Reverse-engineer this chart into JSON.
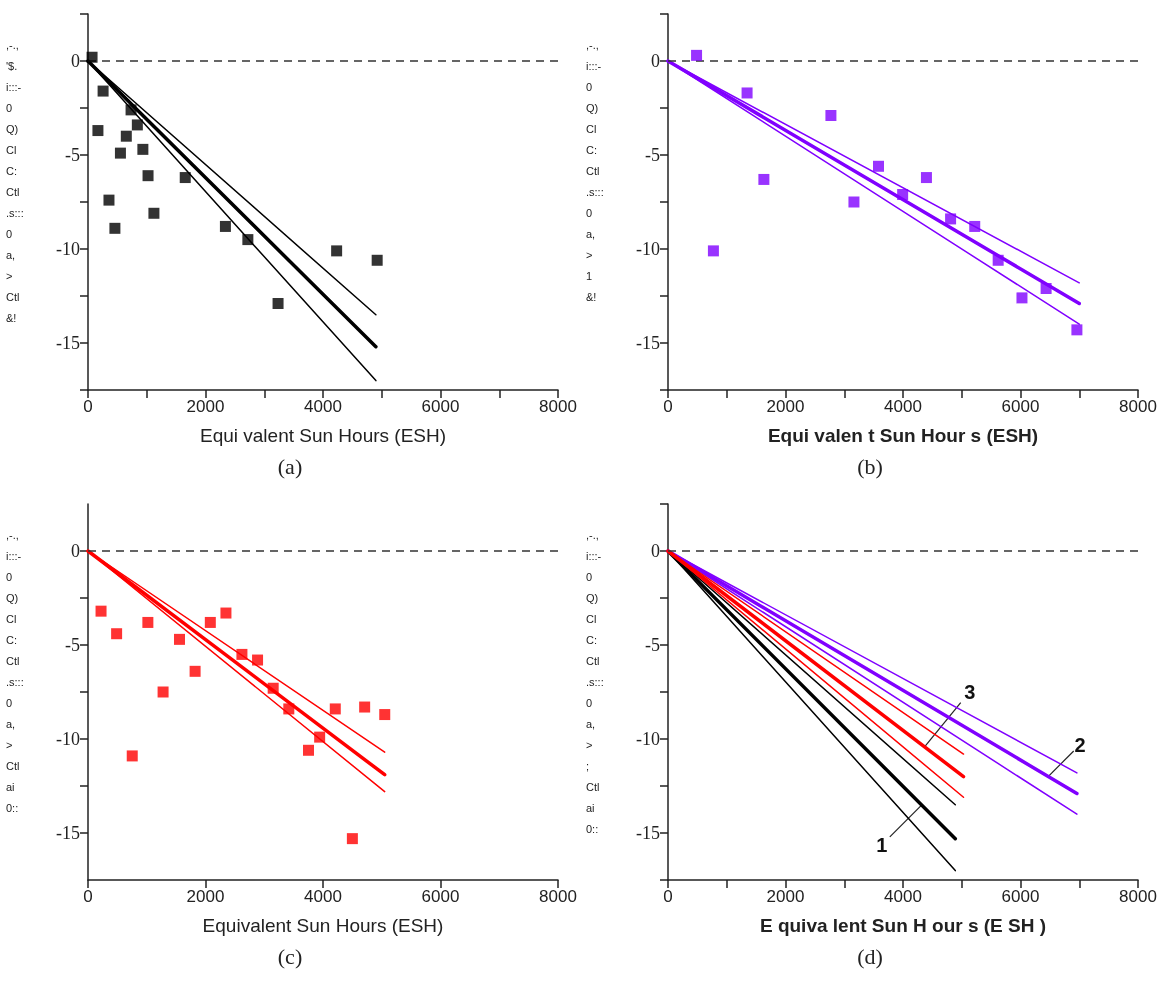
{
  "chart_data": [
    {
      "type": "scatter",
      "title": "(a)",
      "xlabel": "Equi valent Sun Hours (ESH)",
      "ylabel": ",-.,\n'$.\ni:::-\n0\nQ)\nCl\nC:\nCtl\n.s:::\n0\na,\n>\nCtl\n&!",
      "xlim": [
        0,
        8000
      ],
      "xticks": [
        0,
        {
          "value": 1000,
          "label": null
        },
        2000,
        {
          "value": 3000,
          "label": null
        },
        4000,
        {
          "value": 5000,
          "label": null
        },
        6000,
        {
          "value": 7000,
          "label": null
        },
        8000
      ],
      "ylim": [
        -17.5,
        2.5
      ],
      "yticks": [
        {
          "value": 2.5,
          "label": null
        },
        0,
        {
          "value": -2.5,
          "label": null
        },
        -5,
        {
          "value": -7.5,
          "label": null
        },
        -10,
        {
          "value": -12.5,
          "label": null
        },
        -15,
        {
          "value": -17.5,
          "label": null
        }
      ],
      "grid": false,
      "ref_lines": [
        {
          "axis": "y",
          "value": 0,
          "color": "#333333",
          "line_style": "dashed"
        }
      ],
      "series": [
        {
          "color": "#000000",
          "marker": "square",
          "x": [
            69,
            257,
            169,
            733,
            840,
            652,
            552,
            934,
            1022,
            357,
            1122,
            458,
            1655,
            2339,
            2721,
            3235,
            4232,
            4922
          ],
          "values": [
            0.2,
            -1.6,
            -3.7,
            -2.6,
            -3.4,
            -4.0,
            -4.9,
            -4.7,
            -6.1,
            -7.4,
            -8.1,
            -8.9,
            -6.2,
            -8.8,
            -9.5,
            -12.9,
            -10.1,
            -10.6
          ]
        },
        {
          "type": "line",
          "color": "#000000",
          "marker": "none",
          "x": [
            0,
            4900
          ],
          "values": [
            0,
            -13.5
          ]
        },
        {
          "type": "line",
          "color": "#000000",
          "marker": "none",
          "x": [
            0,
            4900
          ],
          "values": [
            0,
            -15.2
          ]
        },
        {
          "type": "line",
          "color": "#000000",
          "marker": "none",
          "x": [
            0,
            4900
          ],
          "values": [
            0,
            -17.0
          ]
        }
      ]
    },
    {
      "type": "scatter",
      "title": "(b)",
      "xlabel": "Equi valen t Sun Hour s (ESH)",
      "ylabel": ",-.,\ni:::-\n0\nQ)\nCl\nC:\nCtl\n.s:::\n0\na,\n>\n1\n&!",
      "xlim": [
        0,
        8000
      ],
      "xticks": [
        0,
        {
          "value": 1000,
          "label": null
        },
        2000,
        {
          "value": 3000,
          "label": null
        },
        4000,
        {
          "value": 5000,
          "label": null
        },
        6000,
        {
          "value": 7000,
          "label": null
        },
        8000
      ],
      "ylim": [
        -17.5,
        2.5
      ],
      "yticks": [
        {
          "value": 2.5,
          "label": null
        },
        0,
        {
          "value": -2.5,
          "label": null
        },
        -5,
        {
          "value": -7.5,
          "label": null
        },
        -10,
        {
          "value": -12.5,
          "label": null
        },
        -15,
        {
          "value": -17.5,
          "label": null
        }
      ],
      "grid": false,
      "ref_lines": [
        {
          "axis": "y",
          "value": 0,
          "color": "#333333",
          "line_style": "dashed"
        }
      ],
      "series": [
        {
          "color": "#8000ff",
          "marker": "square",
          "x": [
            486,
            1346,
            2773,
            1632,
            773,
            3583,
            4399,
            3994,
            3165,
            4810,
            5221,
            5620,
            6025,
            6436,
            6960
          ],
          "values": [
            0.3,
            -1.7,
            -2.9,
            -6.3,
            -10.1,
            -5.6,
            -6.2,
            -7.1,
            -7.5,
            -8.4,
            -8.8,
            -10.6,
            -12.6,
            -12.1,
            -14.3
          ]
        },
        {
          "type": "line",
          "color": "#8000ff",
          "marker": "none",
          "x": [
            0,
            7000
          ],
          "values": [
            0,
            -11.8
          ]
        },
        {
          "type": "line",
          "color": "#8000ff",
          "marker": "none",
          "x": [
            0,
            7000
          ],
          "values": [
            0,
            -12.9
          ]
        },
        {
          "type": "line",
          "color": "#8000ff",
          "marker": "none",
          "x": [
            0,
            7000
          ],
          "values": [
            0,
            -14.0
          ]
        }
      ]
    },
    {
      "type": "scatter",
      "title": "(c)",
      "xlabel": "Equivalent Sun Hours (ESH)",
      "ylabel": ",-.,\ni:::-\n0\nQ)\nCl\nC:\nCtl\n.s:::\n0\na,\n>\nCtl\nai\n0::",
      "xlim": [
        0,
        8000
      ],
      "xticks": [
        0,
        2000,
        4000,
        6000,
        8000
      ],
      "ylim": [
        -17.5,
        2.5
      ],
      "yticks": [
        0,
        {
          "value": -2.5,
          "label": null
        },
        -5,
        {
          "value": -7.5,
          "label": null
        },
        -10,
        {
          "value": -12.5,
          "label": null
        },
        -15
      ],
      "grid": false,
      "ref_lines": [
        {
          "axis": "y",
          "value": 0,
          "color": "#333333",
          "line_style": "dashed"
        }
      ],
      "series": [
        {
          "color": "#ff0000",
          "marker": "square",
          "x": [
            222,
            487,
            1019,
            1557,
            1823,
            1278,
            753,
            2082,
            2348,
            2620,
            2886,
            3152,
            3418,
            3753,
            3943,
            4209,
            4709,
            5051,
            4500
          ],
          "values": [
            -3.2,
            -4.4,
            -3.8,
            -4.7,
            -6.4,
            -7.5,
            -10.9,
            -3.8,
            -3.3,
            -5.5,
            -5.8,
            -7.3,
            -8.4,
            -10.6,
            -9.9,
            -8.4,
            -8.3,
            -8.7,
            -15.3
          ]
        },
        {
          "type": "line",
          "color": "#ff0000",
          "marker": "none",
          "x": [
            0,
            5050
          ],
          "values": [
            0,
            -10.7
          ]
        },
        {
          "type": "line",
          "color": "#ff0000",
          "marker": "none",
          "x": [
            0,
            5050
          ],
          "values": [
            0,
            -11.9
          ]
        },
        {
          "type": "line",
          "color": "#ff0000",
          "marker": "none",
          "x": [
            0,
            5050
          ],
          "values": [
            0,
            -12.8
          ]
        }
      ]
    },
    {
      "type": "line",
      "title": "(d)",
      "xlabel": "E quiva lent Sun H our s (E SH )",
      "ylabel": ",-.,\ni:::-\n0\nQ)\nCl\nC:\nCtl\n.s:::\n0\na,\n>\n;\nCtl\nai\n0::",
      "xlim": [
        0,
        8000
      ],
      "xticks": [
        0,
        {
          "value": 1000,
          "label": null
        },
        2000,
        {
          "value": 3000,
          "label": null
        },
        4000,
        {
          "value": 5000,
          "label": null
        },
        6000,
        {
          "value": 7000,
          "label": null
        },
        8000
      ],
      "ylim": [
        -17.5,
        2.5
      ],
      "yticks": [
        {
          "value": 2.5,
          "label": null
        },
        0,
        {
          "value": -2.5,
          "label": null
        },
        -5,
        {
          "value": -7.5,
          "label": null
        },
        -10,
        {
          "value": -12.5,
          "label": null
        },
        -15,
        {
          "value": -17.5,
          "label": null
        }
      ],
      "grid": false,
      "marker": "none",
      "ref_lines": [
        {
          "axis": "y",
          "value": 0,
          "color": "#333333",
          "line_style": "dashed"
        }
      ],
      "annotations": [
        {
          "text": "1",
          "x": 4320,
          "y": -13.5
        },
        {
          "text": "2",
          "x": 6470,
          "y": -12.0
        },
        {
          "text": "3",
          "x": 4370,
          "y": -10.4
        }
      ],
      "series": [
        {
          "color": "#000000",
          "x": [
            0,
            4890
          ],
          "values": [
            0,
            -13.5
          ]
        },
        {
          "color": "#000000",
          "x": [
            0,
            4890
          ],
          "values": [
            0,
            -15.3
          ]
        },
        {
          "color": "#000000",
          "x": [
            0,
            4890
          ],
          "values": [
            0,
            -17.0
          ]
        },
        {
          "color": "#8000ff",
          "x": [
            0,
            6960
          ],
          "values": [
            0,
            -11.8
          ]
        },
        {
          "color": "#8000ff",
          "x": [
            0,
            6960
          ],
          "values": [
            0,
            -12.9
          ]
        },
        {
          "color": "#8000ff",
          "x": [
            0,
            6960
          ],
          "values": [
            0,
            -14.0
          ]
        },
        {
          "color": "#ff0000",
          "x": [
            0,
            5030
          ],
          "values": [
            0,
            -10.8
          ]
        },
        {
          "color": "#ff0000",
          "x": [
            0,
            5030
          ],
          "values": [
            0,
            -12.0
          ]
        },
        {
          "color": "#ff0000",
          "x": [
            0,
            5030
          ],
          "values": [
            0,
            -13.1
          ]
        }
      ]
    }
  ]
}
